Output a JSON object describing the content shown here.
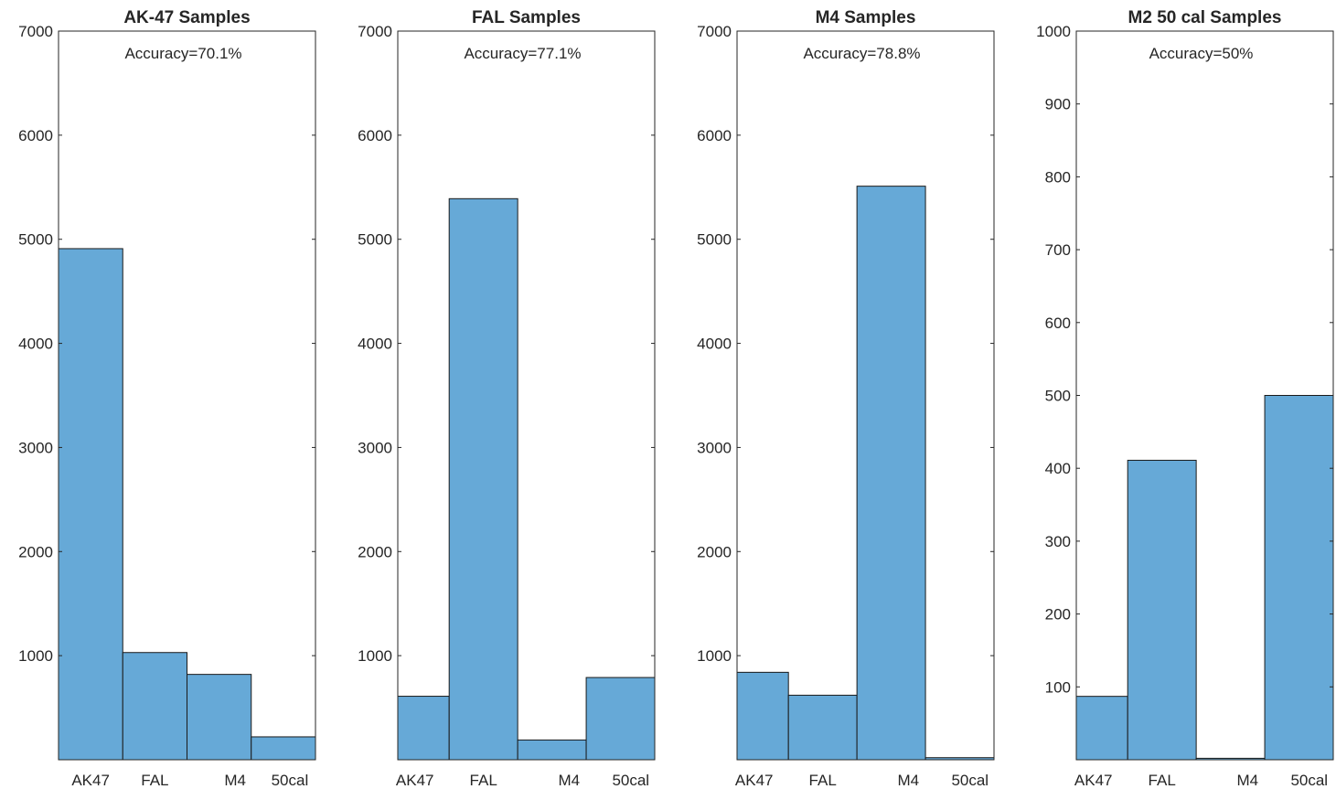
{
  "chart_data": [
    {
      "type": "bar",
      "title": "AK-47 Samples",
      "annotation": "Accuracy=70.1%",
      "categories": [
        "AK47",
        "FAL",
        "M4",
        "50cal"
      ],
      "values": [
        4910,
        1030,
        820,
        220
      ],
      "bin_edges": [
        0,
        1,
        2,
        3,
        4
      ],
      "xlim": [
        0,
        4
      ],
      "ylim": [
        0,
        7000
      ],
      "yticks": [
        1000,
        2000,
        3000,
        4000,
        5000,
        6000,
        7000
      ],
      "category_label_x": [
        0.5,
        1.5,
        2.75,
        3.6
      ],
      "grid": false,
      "box": true
    },
    {
      "type": "bar",
      "title": "FAL Samples",
      "annotation": "Accuracy=77.1%",
      "categories": [
        "AK47",
        "FAL",
        "M4",
        "50cal"
      ],
      "values": [
        610,
        5390,
        190,
        790
      ],
      "bin_edges": [
        0,
        0.75,
        1.75,
        2.75,
        3.75
      ],
      "xlim": [
        0,
        3.75
      ],
      "ylim": [
        0,
        7000
      ],
      "yticks": [
        1000,
        2000,
        3000,
        4000,
        5000,
        6000,
        7000
      ],
      "category_label_x": [
        0.25,
        1.25,
        2.5,
        3.4
      ],
      "grid": false,
      "box": true
    },
    {
      "type": "bar",
      "title": "M4 Samples",
      "annotation": "Accuracy=78.8%",
      "categories": [
        "AK47",
        "FAL",
        "M4",
        "50cal"
      ],
      "values": [
        840,
        620,
        5510,
        20
      ],
      "bin_edges": [
        0,
        0.75,
        1.75,
        2.75,
        3.75
      ],
      "xlim": [
        0,
        3.75
      ],
      "ylim": [
        0,
        7000
      ],
      "yticks": [
        1000,
        2000,
        3000,
        4000,
        5000,
        6000,
        7000
      ],
      "category_label_x": [
        0.25,
        1.25,
        2.5,
        3.4
      ],
      "grid": false,
      "box": true
    },
    {
      "type": "bar",
      "title": "M2 50 cal Samples",
      "annotation": "Accuracy=50%",
      "categories": [
        "AK47",
        "FAL",
        "M4",
        "50cal"
      ],
      "values": [
        87,
        411,
        2,
        500
      ],
      "bin_edges": [
        0,
        0.75,
        1.75,
        2.75,
        3.75
      ],
      "xlim": [
        0,
        3.75
      ],
      "ylim": [
        0,
        1000
      ],
      "yticks": [
        100,
        200,
        300,
        400,
        500,
        600,
        700,
        800,
        900,
        1000
      ],
      "category_label_x": [
        0.25,
        1.25,
        2.5,
        3.4
      ],
      "grid": false,
      "box": true
    }
  ]
}
